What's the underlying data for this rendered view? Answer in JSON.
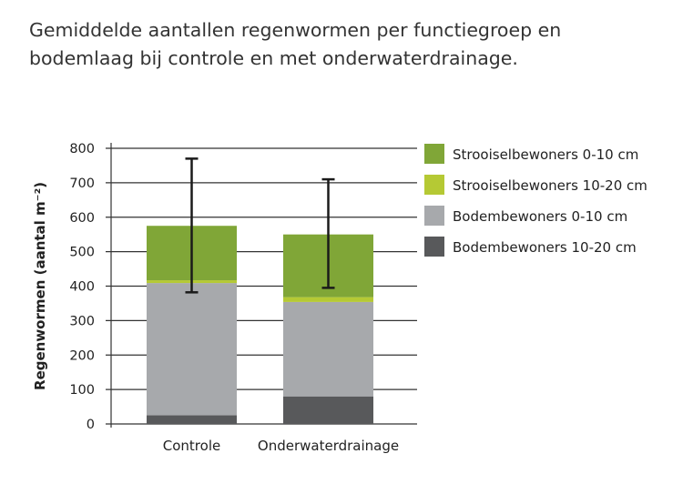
{
  "chart_data": {
    "type": "bar",
    "stacked": true,
    "title": "Gemiddelde aantallen regenwormen per functiegroep en bodemlaag bij controle en met onderwaterdrainage.",
    "title_lines": [
      "Gemiddelde aantallen regenwormen per functiegroep en",
      "bodemlaag bij controle en met onderwaterdrainage."
    ],
    "xlabel": "",
    "ylabel": "Regenwormen (aantal m⁻²)",
    "ylim": [
      0,
      800
    ],
    "yticks": [
      0,
      100,
      200,
      300,
      400,
      500,
      600,
      700,
      800
    ],
    "grid": true,
    "legend_position": "right",
    "categories": [
      "Controle",
      "Onderwaterdrainage"
    ],
    "series": [
      {
        "name": "Bodembewoners 10-20 cm",
        "color": "#58595b",
        "values": [
          25,
          80
        ]
      },
      {
        "name": "Bodembewoners 0-10 cm",
        "color": "#a7a9ac",
        "values": [
          384,
          274
        ]
      },
      {
        "name": "Strooiselbewoners 10-20 cm",
        "color": "#b5c934",
        "values": [
          8,
          14
        ]
      },
      {
        "name": "Strooiselbewoners 0-10 cm",
        "color": "#80a637",
        "values": [
          158,
          182
        ]
      }
    ],
    "legend_order": [
      3,
      2,
      1,
      0
    ],
    "error_bars": [
      {
        "category": "Controle",
        "low": 382,
        "high": 770
      },
      {
        "category": "Onderwaterdrainage",
        "low": 395,
        "high": 710
      }
    ]
  }
}
